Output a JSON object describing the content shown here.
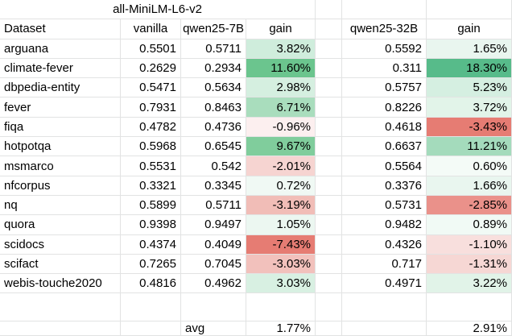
{
  "header": {
    "group_title": "all-MiniLM-L6-v2",
    "col_dataset": "Dataset",
    "col_vanilla": "vanilla",
    "col_q7": "qwen25-7B",
    "col_gain7": "gain",
    "col_q32": "qwen25-32B",
    "col_gain32": "gain"
  },
  "rows": [
    {
      "dataset": "arguana",
      "vanilla": "0.5501",
      "q7": "0.5711",
      "gain7": "3.82%",
      "q32": "0.5592",
      "gain32": "1.65%",
      "bg7": "#cfeddc",
      "bg32": "#e9f6ef"
    },
    {
      "dataset": "climate-fever",
      "vanilla": "0.2629",
      "q7": "0.2934",
      "gain7": "11.60%",
      "q32": "0.311",
      "gain32": "18.30%",
      "bg7": "#6bc58e",
      "bg32": "#57bb8a"
    },
    {
      "dataset": "dbpedia-entity",
      "vanilla": "0.5471",
      "q7": "0.5634",
      "gain7": "2.98%",
      "q32": "0.5757",
      "gain32": "5.23%",
      "bg7": "#d5efe0",
      "bg32": "#d5efe1"
    },
    {
      "dataset": "fever",
      "vanilla": "0.7931",
      "q7": "0.8463",
      "gain7": "6.71%",
      "q32": "0.8226",
      "gain32": "3.72%",
      "bg7": "#a9ddbd",
      "bg32": "#e2f4e9"
    },
    {
      "dataset": "fiqa",
      "vanilla": "0.4782",
      "q7": "0.4736",
      "gain7": "-0.96%",
      "q32": "0.4618",
      "gain32": "-3.43%",
      "bg7": "#fcefef",
      "bg32": "#e67c73"
    },
    {
      "dataset": "hotpotqa",
      "vanilla": "0.5968",
      "q7": "0.6545",
      "gain7": "9.67%",
      "q32": "0.6637",
      "gain32": "11.21%",
      "bg7": "#80cd9c",
      "bg32": "#a4dbbc"
    },
    {
      "dataset": "msmarco",
      "vanilla": "0.5531",
      "q7": "0.542",
      "gain7": "-2.01%",
      "q32": "0.5564",
      "gain32": "0.60%",
      "bg7": "#f6d4d1",
      "bg32": "#f4fbf7"
    },
    {
      "dataset": "nfcorpus",
      "vanilla": "0.3321",
      "q7": "0.3345",
      "gain7": "0.72%",
      "q32": "0.3376",
      "gain32": "1.66%",
      "bg7": "#f0f9f4",
      "bg32": "#e9f6ef"
    },
    {
      "dataset": "nq",
      "vanilla": "0.5899",
      "q7": "0.5711",
      "gain7": "-3.19%",
      "q32": "0.5731",
      "gain32": "-2.85%",
      "bg7": "#f1bdb7",
      "bg32": "#ea918a"
    },
    {
      "dataset": "quora",
      "vanilla": "0.9398",
      "q7": "0.9497",
      "gain7": "1.05%",
      "q32": "0.9482",
      "gain32": "0.89%",
      "bg7": "#ecf7f1",
      "bg32": "#f1faf5"
    },
    {
      "dataset": "scidocs",
      "vanilla": "0.4374",
      "q7": "0.4049",
      "gain7": "-7.43%",
      "q32": "0.4326",
      "gain32": "-1.10%",
      "bg7": "#e67c73",
      "bg32": "#f8dfdd"
    },
    {
      "dataset": "scifact",
      "vanilla": "0.7265",
      "q7": "0.7045",
      "gain7": "-3.03%",
      "q32": "0.717",
      "gain32": "-1.31%",
      "bg7": "#f2c1bc",
      "bg32": "#f6d7d4"
    },
    {
      "dataset": "webis-touche2020",
      "vanilla": "0.4816",
      "q7": "0.4962",
      "gain7": "3.03%",
      "q32": "0.4971",
      "gain32": "3.22%",
      "bg7": "#d8f0e2",
      "bg32": "#e1f3e8"
    }
  ],
  "footer": {
    "avg_label": "avg",
    "avg_gain7": "1.77%",
    "avg_gain32": "2.91%"
  }
}
